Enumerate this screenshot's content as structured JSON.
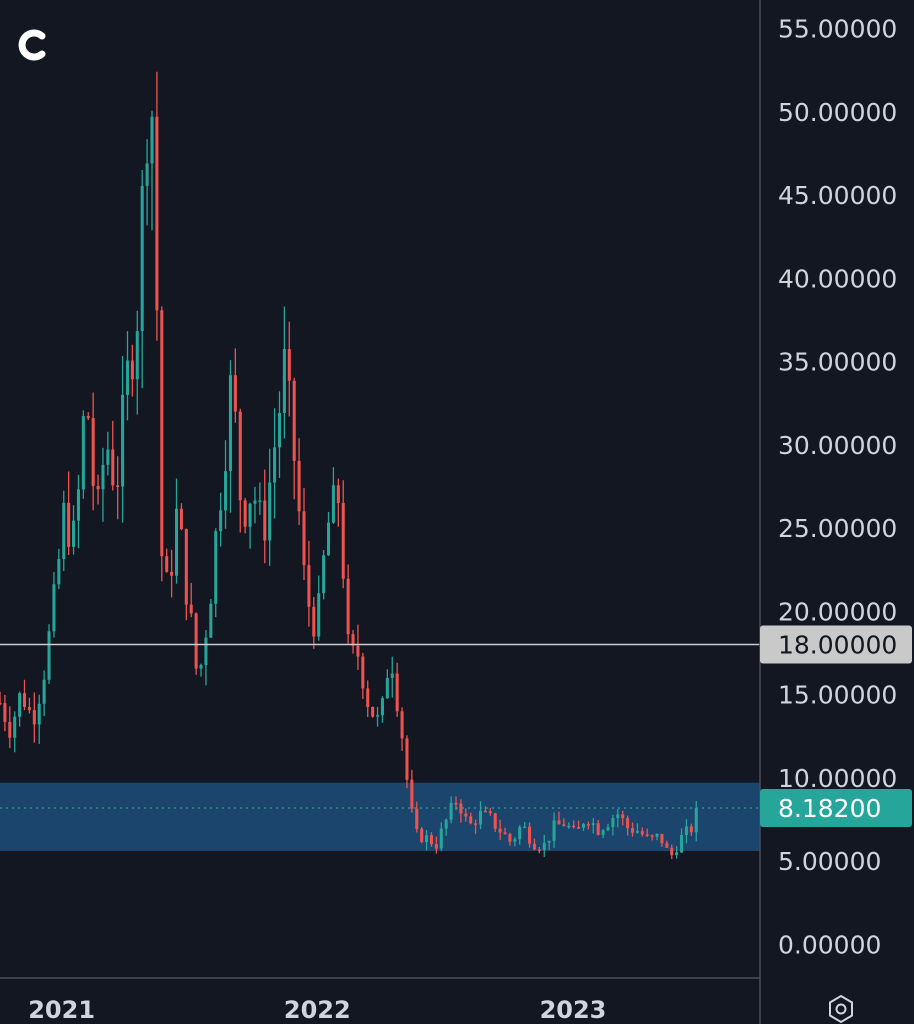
{
  "app": {
    "logo_letter": "C",
    "settings_icon": "hexagon-settings-icon"
  },
  "colors": {
    "background": "#131722",
    "up": "#26a69a",
    "down": "#ef5350",
    "zone": "#1f4e7a",
    "level_line": "#c9c9c9",
    "level_badge": "#c9c9c9",
    "price_badge": "#26a69a"
  },
  "chart_data": {
    "type": "candlestick",
    "y_axis": {
      "ticks": [
        0,
        5,
        10,
        15,
        20,
        25,
        30,
        35,
        40,
        45,
        50,
        55
      ],
      "tick_labels": [
        "0.00000",
        "5.00000",
        "10.00000",
        "15.00000",
        "20.00000",
        "25.00000",
        "30.00000",
        "35.00000",
        "40.00000",
        "45.00000",
        "50.00000",
        "55.00000"
      ],
      "range": [
        -2,
        57
      ]
    },
    "x_axis": {
      "range": [
        "2020-10-05",
        "2023-09-25"
      ],
      "labels": [
        {
          "date": "2021-01-01",
          "text": "2021"
        },
        {
          "date": "2022-01-01",
          "text": "2022"
        },
        {
          "date": "2023-01-01",
          "text": "2023"
        }
      ]
    },
    "grid": false,
    "horizontal_level": {
      "value": 18.0,
      "label": "18.00000"
    },
    "support_zone": {
      "low": 5.6,
      "high": 9.7
    },
    "last_price": {
      "value": 8.182,
      "label": "8.18200"
    },
    "price_path": [
      [
        "2020-10-05",
        14.5
      ],
      [
        "2020-10-20",
        13.0
      ],
      [
        "2020-11-05",
        15.2
      ],
      [
        "2020-11-20",
        13.5
      ],
      [
        "2020-12-05",
        16.0
      ],
      [
        "2020-12-20",
        20.0
      ],
      [
        "2021-01-05",
        26.0
      ],
      [
        "2021-01-20",
        24.0
      ],
      [
        "2021-02-05",
        33.5
      ],
      [
        "2021-02-20",
        25.0
      ],
      [
        "2021-03-05",
        30.5
      ],
      [
        "2021-03-20",
        27.5
      ],
      [
        "2021-04-05",
        34.0
      ],
      [
        "2021-04-20",
        38.5
      ],
      [
        "2021-05-01",
        49.0
      ],
      [
        "2021-05-08",
        52.5
      ],
      [
        "2021-05-15",
        44.0
      ],
      [
        "2021-05-22",
        24.0
      ],
      [
        "2021-06-01",
        21.0
      ],
      [
        "2021-06-15",
        26.0
      ],
      [
        "2021-07-01",
        20.5
      ],
      [
        "2021-07-15",
        15.5
      ],
      [
        "2021-08-01",
        21.0
      ],
      [
        "2021-08-15",
        27.0
      ],
      [
        "2021-09-01",
        34.0
      ],
      [
        "2021-09-15",
        26.0
      ],
      [
        "2021-10-01",
        27.5
      ],
      [
        "2021-10-15",
        24.5
      ],
      [
        "2021-11-01",
        30.0
      ],
      [
        "2021-11-15",
        34.5
      ],
      [
        "2021-12-01",
        28.5
      ],
      [
        "2021-12-15",
        21.0
      ],
      [
        "2022-01-01",
        19.0
      ],
      [
        "2022-01-15",
        25.0
      ],
      [
        "2022-02-01",
        27.0
      ],
      [
        "2022-02-15",
        17.0
      ],
      [
        "2022-03-01",
        17.5
      ],
      [
        "2022-03-15",
        14.5
      ],
      [
        "2022-04-01",
        13.0
      ],
      [
        "2022-04-15",
        18.0
      ],
      [
        "2022-05-01",
        13.0
      ],
      [
        "2022-05-10",
        9.5
      ],
      [
        "2022-05-20",
        6.6
      ],
      [
        "2022-06-05",
        6.4
      ],
      [
        "2022-06-20",
        6.0
      ],
      [
        "2022-07-05",
        7.5
      ],
      [
        "2022-07-20",
        8.8
      ],
      [
        "2022-08-05",
        7.0
      ],
      [
        "2022-08-20",
        7.8
      ],
      [
        "2022-09-05",
        7.5
      ],
      [
        "2022-09-20",
        6.8
      ],
      [
        "2022-10-05",
        6.1
      ],
      [
        "2022-10-20",
        7.2
      ],
      [
        "2022-11-05",
        6.1
      ],
      [
        "2022-11-20",
        5.9
      ],
      [
        "2022-12-05",
        7.0
      ],
      [
        "2022-12-20",
        7.3
      ],
      [
        "2023-01-05",
        6.5
      ],
      [
        "2023-01-20",
        7.8
      ],
      [
        "2023-02-05",
        6.9
      ],
      [
        "2023-02-20",
        7.4
      ],
      [
        "2023-03-05",
        7.9
      ],
      [
        "2023-03-20",
        7.0
      ],
      [
        "2023-04-05",
        6.8
      ],
      [
        "2023-04-20",
        6.2
      ],
      [
        "2023-05-05",
        6.5
      ],
      [
        "2023-05-20",
        5.2
      ],
      [
        "2023-06-05",
        6.4
      ],
      [
        "2023-06-20",
        7.0
      ],
      [
        "2023-07-01",
        8.18
      ]
    ]
  }
}
